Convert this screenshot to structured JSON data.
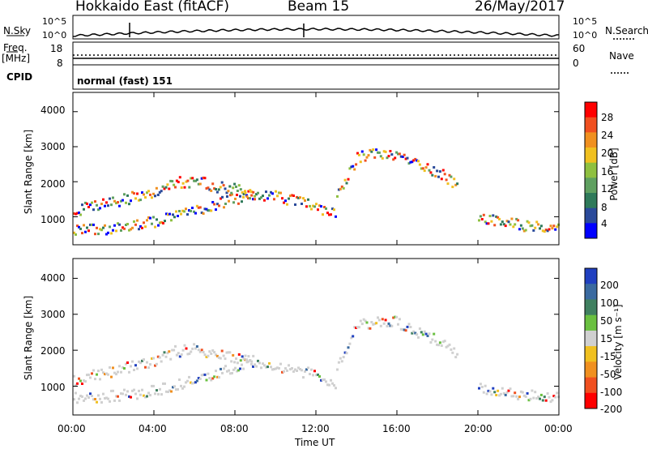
{
  "header": {
    "station": "Hokkaido East (fitACF)",
    "beam": "Beam 15",
    "date": "26/May/2017"
  },
  "nsky_panel": {
    "label": "N.Sky",
    "top_tick": "10^5",
    "bottom_tick": "10^0",
    "right_top_tick": "10^5",
    "right_bottom_tick": "10^0",
    "right_label": "N.Search"
  },
  "freq_panel": {
    "label_top": "Freq.",
    "label_unit": "[MHz]",
    "left_top_tick": "18",
    "left_bottom_tick": "8",
    "right_top_tick": "60",
    "right_bottom_tick": "0",
    "right_label": "Nave"
  },
  "cpid_panel": {
    "label": "CPID",
    "mode_text": "normal (fast) 151"
  },
  "chart_data": [
    {
      "type": "heatmap",
      "name": "power-panel",
      "ylabel": "Slant Range [km]",
      "y_ticks": [
        "1000",
        "2000",
        "3000",
        "4000"
      ],
      "ylim": [
        200,
        4550
      ],
      "xlim": [
        0,
        24
      ],
      "colorbar_label": "Power [dB]",
      "colorbar_ticks": [
        "4",
        "8",
        "12",
        "16",
        "20",
        "24",
        "28"
      ],
      "colorbar_colors": [
        "#0000ff",
        "#2a4a9a",
        "#2f7a5a",
        "#5fa060",
        "#8fc040",
        "#f0c020",
        "#f09020",
        "#f05020",
        "#ff0000"
      ],
      "features": [
        {
          "x": [
            0,
            2,
            4,
            6,
            7,
            9,
            11,
            13
          ],
          "y": [
            650,
            700,
            900,
            1200,
            1400,
            1700,
            1500,
            1100
          ]
        },
        {
          "x": [
            0,
            2,
            4,
            5,
            6,
            7,
            8,
            9
          ],
          "y": [
            1200,
            1450,
            1750,
            2000,
            2050,
            1900,
            1800,
            1700
          ]
        },
        {
          "x": [
            13,
            14,
            15,
            16,
            17,
            18,
            19
          ],
          "y": [
            1600,
            2700,
            2850,
            2800,
            2500,
            2300,
            1900
          ]
        },
        {
          "x": [
            20,
            21,
            22,
            23,
            24
          ],
          "y": [
            1000,
            900,
            800,
            750,
            700
          ]
        }
      ]
    },
    {
      "type": "heatmap",
      "name": "velocity-panel",
      "ylabel": "Slant Range [km]",
      "y_ticks": [
        "1000",
        "2000",
        "3000",
        "4000"
      ],
      "ylim": [
        200,
        4550
      ],
      "xlim": [
        0,
        24
      ],
      "colorbar_label": "Velocity [m s⁻¹]",
      "colorbar_ticks": [
        "200",
        "100",
        "50",
        "15",
        "-15",
        "-50",
        "-100",
        "-200"
      ],
      "colorbar_colors": [
        "#2040c0",
        "#3a6aa0",
        "#408060",
        "#6ac040",
        "#d0d0d0",
        "#f0c020",
        "#f09020",
        "#f05020",
        "#ff0000"
      ],
      "features": [
        {
          "x": [
            0,
            2,
            4,
            6,
            7,
            9,
            11,
            13
          ],
          "y": [
            700,
            750,
            900,
            1200,
            1400,
            1700,
            1500,
            1100
          ]
        },
        {
          "x": [
            0,
            2,
            4,
            5,
            6,
            7,
            8,
            9
          ],
          "y": [
            1200,
            1450,
            1750,
            2000,
            2050,
            1900,
            1800,
            1700
          ]
        },
        {
          "x": [
            13,
            14,
            15,
            16,
            17,
            18,
            19
          ],
          "y": [
            1600,
            2700,
            2850,
            2800,
            2500,
            2300,
            1900
          ]
        },
        {
          "x": [
            20,
            21,
            22,
            23,
            24
          ],
          "y": [
            1000,
            900,
            800,
            750,
            700
          ]
        }
      ]
    }
  ],
  "x_axis": {
    "ticks": [
      "00:00",
      "04:00",
      "08:00",
      "12:00",
      "16:00",
      "20:00",
      "00:00"
    ],
    "label": "Time UT"
  }
}
